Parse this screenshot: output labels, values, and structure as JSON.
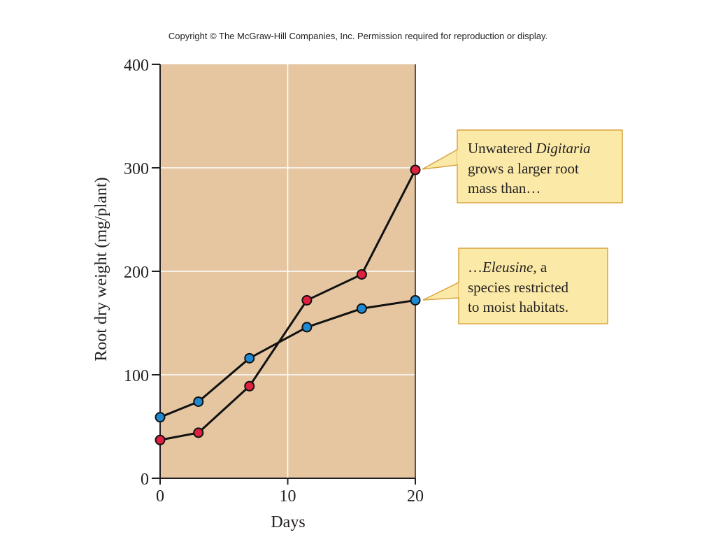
{
  "copyright": "Copyright © The McGraw-Hill Companies, Inc. Permission required for reproduction or display.",
  "colors": {
    "plot_background": "#e5c6a1",
    "gridline": "#ffffff",
    "series_line": "#111111",
    "digitaria_marker": "#e0203f",
    "eleusine_marker": "#1e88d0",
    "callout_fill": "#fbeaa7",
    "callout_border": "#d9a441"
  },
  "callouts": {
    "digitaria": {
      "line1_prefix": "Unwatered ",
      "line1_italic": "Digitaria",
      "line2": "grows a larger root",
      "line3": "mass than…"
    },
    "eleusine": {
      "line1_prefix": "…",
      "line1_italic": "Eleusine",
      "line1_suffix": ", a",
      "line2": "species restricted",
      "line3": "to moist habitats."
    }
  },
  "chart_data": {
    "type": "line",
    "title": "",
    "xlabel": "Days",
    "ylabel": "Root dry weight (mg/plant)",
    "xlim": [
      0,
      20
    ],
    "ylim": [
      0,
      400
    ],
    "x_ticks": [
      "0",
      "10",
      "20"
    ],
    "y_ticks": [
      "0",
      "100",
      "200",
      "300",
      "400"
    ],
    "grid": true,
    "legend": "none",
    "series": [
      {
        "key": "digitaria",
        "color": "#e0203f",
        "x": [
          0,
          3,
          7,
          11.5,
          15.8,
          20
        ],
        "y": [
          37,
          44,
          89,
          172,
          197,
          298
        ]
      },
      {
        "key": "eleusine",
        "color": "#1e88d0",
        "x": [
          0,
          3,
          7,
          11.5,
          15.8,
          20
        ],
        "y": [
          59,
          74,
          116,
          146,
          164,
          172
        ]
      }
    ]
  }
}
